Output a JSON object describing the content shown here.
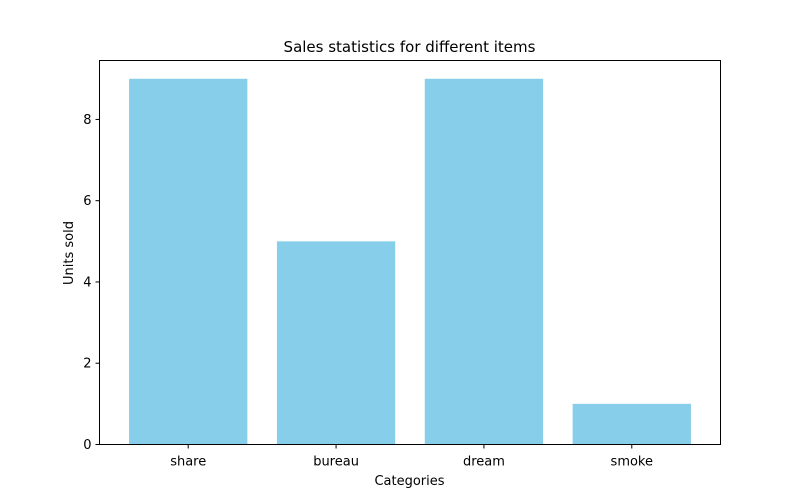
{
  "chart_data": {
    "type": "bar",
    "title": "Sales statistics for different items",
    "xlabel": "Categories",
    "ylabel": "Units sold",
    "categories": [
      "share",
      "bureau",
      "dream",
      "smoke"
    ],
    "values": [
      9,
      5,
      9,
      1
    ],
    "ylim": [
      0,
      9.45
    ],
    "yticks": [
      0,
      2,
      4,
      6,
      8
    ],
    "bar_color": "#87ceeb",
    "grid": false,
    "legend": "none"
  }
}
